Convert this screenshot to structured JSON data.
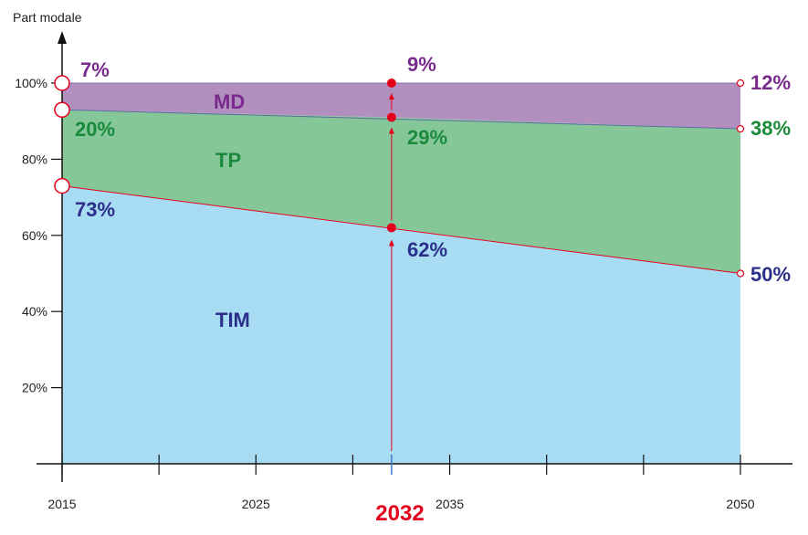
{
  "chart_data": {
    "type": "area",
    "stacked": true,
    "ylabel": "Part modale",
    "ylim": [
      0,
      100
    ],
    "xlim": [
      2015,
      2050
    ],
    "y_ticks": [
      "20%",
      "40%",
      "60%",
      "80%",
      "100%"
    ],
    "x_ticks": [
      "2015",
      "2025",
      "2035",
      "2050"
    ],
    "highlight_year_label": "2032",
    "highlight_year": 2032,
    "x": [
      2015,
      2032,
      2050
    ],
    "series": [
      {
        "name": "TIM",
        "values": [
          73,
          62,
          50
        ],
        "color": "#a8dcf3",
        "label_color": "#2b2f8a"
      },
      {
        "name": "TP",
        "values": [
          20,
          29,
          38
        ],
        "color": "#86c79a",
        "label_color": "#1a8a3a"
      },
      {
        "name": "MD",
        "values": [
          7,
          9,
          12
        ],
        "color": "#b38fc0",
        "label_color": "#7a2a8c"
      }
    ],
    "annotations": {
      "y2015": {
        "TIM": "73%",
        "TP": "20%",
        "MD": "7%"
      },
      "y2032": {
        "TIM": "62%",
        "TP": "29%",
        "MD": "9%"
      },
      "y2050": {
        "TIM": "50%",
        "TP": "38%",
        "MD": "12%"
      }
    },
    "accent_color": "#e3001b",
    "grid": false
  }
}
